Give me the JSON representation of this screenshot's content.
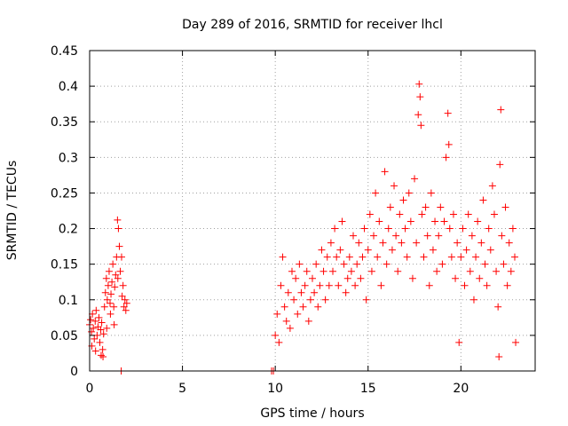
{
  "chart_data": {
    "type": "scatter",
    "title": "Day 289 of 2016, SRMTID for receiver lhcl",
    "xlabel": "GPS time / hours",
    "ylabel": "SRMTID / TECUs",
    "xlim": [
      0,
      24
    ],
    "ylim": [
      0,
      0.45
    ],
    "xticks": [
      0,
      5,
      10,
      15,
      20
    ],
    "xtick_labels": [
      "0",
      "5",
      "10",
      "15",
      "20"
    ],
    "yticks": [
      0,
      0.05,
      0.1,
      0.15,
      0.2,
      0.25,
      0.3,
      0.35,
      0.4,
      0.45
    ],
    "ytick_labels": [
      "0",
      "0.05",
      "0.1",
      "0.15",
      "0.2",
      "0.25",
      "0.3",
      "0.35",
      "0.4",
      "0.45"
    ],
    "grid": true,
    "marker": "+",
    "color": "#ff0000",
    "series": [
      {
        "name": "SRMTID",
        "points": [
          [
            0.0,
            0.065
          ],
          [
            0.05,
            0.072
          ],
          [
            0.1,
            0.055
          ],
          [
            0.15,
            0.08
          ],
          [
            0.2,
            0.06
          ],
          [
            0.25,
            0.045
          ],
          [
            0.3,
            0.07
          ],
          [
            0.35,
            0.085
          ],
          [
            0.4,
            0.05
          ],
          [
            0.45,
            0.062
          ],
          [
            0.5,
            0.075
          ],
          [
            0.55,
            0.04
          ],
          [
            0.6,
            0.058
          ],
          [
            0.65,
            0.068
          ],
          [
            0.7,
            0.03
          ],
          [
            0.75,
            0.052
          ],
          [
            0.8,
            0.09
          ],
          [
            0.85,
            0.11
          ],
          [
            0.9,
            0.13
          ],
          [
            0.95,
            0.1
          ],
          [
            1.0,
            0.12
          ],
          [
            1.05,
            0.14
          ],
          [
            1.1,
            0.095
          ],
          [
            1.15,
            0.108
          ],
          [
            1.2,
            0.125
          ],
          [
            1.25,
            0.15
          ],
          [
            1.3,
            0.09
          ],
          [
            1.35,
            0.118
          ],
          [
            1.4,
            0.135
          ],
          [
            1.45,
            0.16
          ],
          [
            1.5,
            0.212
          ],
          [
            1.55,
            0.2
          ],
          [
            1.6,
            0.175
          ],
          [
            1.65,
            0.14
          ],
          [
            1.7,
            0.0
          ],
          [
            1.75,
            0.105
          ],
          [
            1.8,
            0.12
          ],
          [
            1.85,
            0.09
          ],
          [
            1.9,
            0.1
          ],
          [
            2.0,
            0.095
          ],
          [
            0.12,
            0.035
          ],
          [
            0.32,
            0.028
          ],
          [
            0.62,
            0.022
          ],
          [
            0.72,
            0.02
          ],
          [
            0.92,
            0.06
          ],
          [
            1.12,
            0.08
          ],
          [
            1.32,
            0.065
          ],
          [
            1.52,
            0.13
          ],
          [
            1.72,
            0.16
          ],
          [
            1.95,
            0.085
          ],
          [
            9.8,
            0.0
          ],
          [
            9.9,
            0.0
          ],
          [
            10.0,
            0.05
          ],
          [
            10.1,
            0.08
          ],
          [
            10.2,
            0.04
          ],
          [
            10.3,
            0.12
          ],
          [
            10.4,
            0.16
          ],
          [
            10.5,
            0.09
          ],
          [
            10.6,
            0.07
          ],
          [
            10.7,
            0.11
          ],
          [
            10.8,
            0.06
          ],
          [
            10.9,
            0.14
          ],
          [
            11.0,
            0.1
          ],
          [
            11.1,
            0.13
          ],
          [
            11.2,
            0.08
          ],
          [
            11.3,
            0.15
          ],
          [
            11.4,
            0.11
          ],
          [
            11.5,
            0.09
          ],
          [
            11.6,
            0.12
          ],
          [
            11.7,
            0.14
          ],
          [
            11.8,
            0.07
          ],
          [
            11.9,
            0.1
          ],
          [
            12.0,
            0.13
          ],
          [
            12.1,
            0.11
          ],
          [
            12.2,
            0.15
          ],
          [
            12.3,
            0.09
          ],
          [
            12.4,
            0.12
          ],
          [
            12.5,
            0.17
          ],
          [
            12.6,
            0.14
          ],
          [
            12.7,
            0.1
          ],
          [
            12.8,
            0.16
          ],
          [
            12.9,
            0.12
          ],
          [
            13.0,
            0.18
          ],
          [
            13.1,
            0.14
          ],
          [
            13.2,
            0.2
          ],
          [
            13.3,
            0.16
          ],
          [
            13.4,
            0.12
          ],
          [
            13.5,
            0.17
          ],
          [
            13.6,
            0.21
          ],
          [
            13.7,
            0.15
          ],
          [
            13.8,
            0.11
          ],
          [
            13.9,
            0.13
          ],
          [
            14.0,
            0.16
          ],
          [
            14.1,
            0.14
          ],
          [
            14.2,
            0.19
          ],
          [
            14.3,
            0.12
          ],
          [
            14.4,
            0.15
          ],
          [
            14.5,
            0.18
          ],
          [
            14.6,
            0.13
          ],
          [
            14.7,
            0.16
          ],
          [
            14.8,
            0.2
          ],
          [
            14.9,
            0.1
          ],
          [
            15.0,
            0.17
          ],
          [
            15.1,
            0.22
          ],
          [
            15.2,
            0.14
          ],
          [
            15.3,
            0.19
          ],
          [
            15.4,
            0.25
          ],
          [
            15.5,
            0.16
          ],
          [
            15.6,
            0.21
          ],
          [
            15.7,
            0.12
          ],
          [
            15.8,
            0.18
          ],
          [
            15.9,
            0.28
          ],
          [
            16.0,
            0.15
          ],
          [
            16.1,
            0.2
          ],
          [
            16.2,
            0.23
          ],
          [
            16.3,
            0.17
          ],
          [
            16.4,
            0.26
          ],
          [
            16.5,
            0.19
          ],
          [
            16.6,
            0.14
          ],
          [
            16.7,
            0.22
          ],
          [
            16.8,
            0.18
          ],
          [
            16.9,
            0.24
          ],
          [
            17.0,
            0.2
          ],
          [
            17.1,
            0.16
          ],
          [
            17.2,
            0.25
          ],
          [
            17.3,
            0.21
          ],
          [
            17.4,
            0.13
          ],
          [
            17.5,
            0.27
          ],
          [
            17.6,
            0.18
          ],
          [
            17.7,
            0.36
          ],
          [
            17.75,
            0.403
          ],
          [
            17.8,
            0.385
          ],
          [
            17.85,
            0.345
          ],
          [
            17.9,
            0.22
          ],
          [
            18.0,
            0.16
          ],
          [
            18.1,
            0.23
          ],
          [
            18.2,
            0.19
          ],
          [
            18.3,
            0.12
          ],
          [
            18.4,
            0.25
          ],
          [
            18.5,
            0.17
          ],
          [
            18.6,
            0.21
          ],
          [
            18.7,
            0.14
          ],
          [
            18.8,
            0.19
          ],
          [
            18.9,
            0.23
          ],
          [
            19.0,
            0.15
          ],
          [
            19.1,
            0.21
          ],
          [
            19.2,
            0.3
          ],
          [
            19.3,
            0.362
          ],
          [
            19.35,
            0.318
          ],
          [
            19.4,
            0.2
          ],
          [
            19.5,
            0.16
          ],
          [
            19.6,
            0.22
          ],
          [
            19.7,
            0.13
          ],
          [
            19.8,
            0.18
          ],
          [
            19.9,
            0.04
          ],
          [
            20.0,
            0.16
          ],
          [
            20.1,
            0.2
          ],
          [
            20.2,
            0.12
          ],
          [
            20.3,
            0.17
          ],
          [
            20.4,
            0.22
          ],
          [
            20.5,
            0.14
          ],
          [
            20.6,
            0.19
          ],
          [
            20.7,
            0.1
          ],
          [
            20.8,
            0.16
          ],
          [
            20.9,
            0.21
          ],
          [
            21.0,
            0.13
          ],
          [
            21.1,
            0.18
          ],
          [
            21.2,
            0.24
          ],
          [
            21.3,
            0.15
          ],
          [
            21.4,
            0.12
          ],
          [
            21.5,
            0.2
          ],
          [
            21.6,
            0.17
          ],
          [
            21.7,
            0.26
          ],
          [
            21.8,
            0.22
          ],
          [
            21.9,
            0.14
          ],
          [
            22.0,
            0.09
          ],
          [
            22.05,
            0.02
          ],
          [
            22.1,
            0.29
          ],
          [
            22.15,
            0.367
          ],
          [
            22.2,
            0.19
          ],
          [
            22.3,
            0.15
          ],
          [
            22.4,
            0.23
          ],
          [
            22.5,
            0.12
          ],
          [
            22.6,
            0.18
          ],
          [
            22.7,
            0.14
          ],
          [
            22.8,
            0.2
          ],
          [
            22.9,
            0.16
          ],
          [
            22.95,
            0.04
          ]
        ]
      }
    ]
  }
}
